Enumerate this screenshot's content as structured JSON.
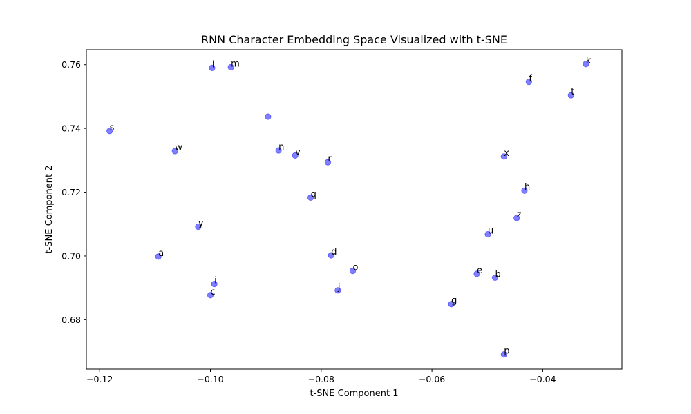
{
  "chart_data": {
    "type": "scatter",
    "title": "RNN Character Embedding Space Visualized with t-SNE",
    "xlabel": "t-SNE Component 1",
    "ylabel": "t-SNE Component 2",
    "xlim": [
      -0.1224,
      -0.0257
    ],
    "ylim": [
      0.6645,
      0.7647
    ],
    "xticks": [
      {
        "value": -0.12,
        "label": "−0.12"
      },
      {
        "value": -0.1,
        "label": "−0.10"
      },
      {
        "value": -0.08,
        "label": "−0.08"
      },
      {
        "value": -0.06,
        "label": "−0.06"
      },
      {
        "value": -0.04,
        "label": "−0.04"
      }
    ],
    "yticks": [
      {
        "value": 0.68,
        "label": "0.68"
      },
      {
        "value": 0.7,
        "label": "0.70"
      },
      {
        "value": 0.72,
        "label": "0.72"
      },
      {
        "value": 0.74,
        "label": "0.74"
      },
      {
        "value": 0.76,
        "label": "0.76"
      }
    ],
    "grid": false,
    "point_color": "#0000ff",
    "point_opacity": 0.5,
    "points": [
      {
        "label": "l",
        "x": -0.0997,
        "y": 0.759
      },
      {
        "label": "m",
        "x": -0.0963,
        "y": 0.7592
      },
      {
        "label": "k",
        "x": -0.0322,
        "y": 0.7602
      },
      {
        "label": "f",
        "x": -0.0425,
        "y": 0.7546
      },
      {
        "label": "t",
        "x": -0.0349,
        "y": 0.7504
      },
      {
        "label": "",
        "x": -0.0896,
        "y": 0.7437
      },
      {
        "label": "s",
        "x": -0.1182,
        "y": 0.7392
      },
      {
        "label": "w",
        "x": -0.1064,
        "y": 0.7329
      },
      {
        "label": "n",
        "x": -0.0877,
        "y": 0.7331
      },
      {
        "label": "v",
        "x": -0.0847,
        "y": 0.7315
      },
      {
        "label": "r",
        "x": -0.0788,
        "y": 0.7294
      },
      {
        "label": "x",
        "x": -0.047,
        "y": 0.7312
      },
      {
        "label": "h",
        "x": -0.0433,
        "y": 0.7205
      },
      {
        "label": "q",
        "x": -0.0819,
        "y": 0.7183
      },
      {
        "label": "z",
        "x": -0.0447,
        "y": 0.7119
      },
      {
        "label": "y",
        "x": -0.1022,
        "y": 0.7092
      },
      {
        "label": "u",
        "x": -0.0499,
        "y": 0.7068
      },
      {
        "label": "a",
        "x": -0.1094,
        "y": 0.6998
      },
      {
        "label": "d",
        "x": -0.0782,
        "y": 0.7002
      },
      {
        "label": "o",
        "x": -0.0743,
        "y": 0.6953
      },
      {
        "label": "e",
        "x": -0.0519,
        "y": 0.6944
      },
      {
        "label": "b",
        "x": -0.0486,
        "y": 0.6932
      },
      {
        "label": "i",
        "x": -0.0993,
        "y": 0.6912
      },
      {
        "label": "j",
        "x": -0.077,
        "y": 0.6892
      },
      {
        "label": "c",
        "x": -0.1,
        "y": 0.6877
      },
      {
        "label": "g",
        "x": -0.0565,
        "y": 0.6849
      },
      {
        "label": "p",
        "x": -0.047,
        "y": 0.6691
      }
    ]
  }
}
